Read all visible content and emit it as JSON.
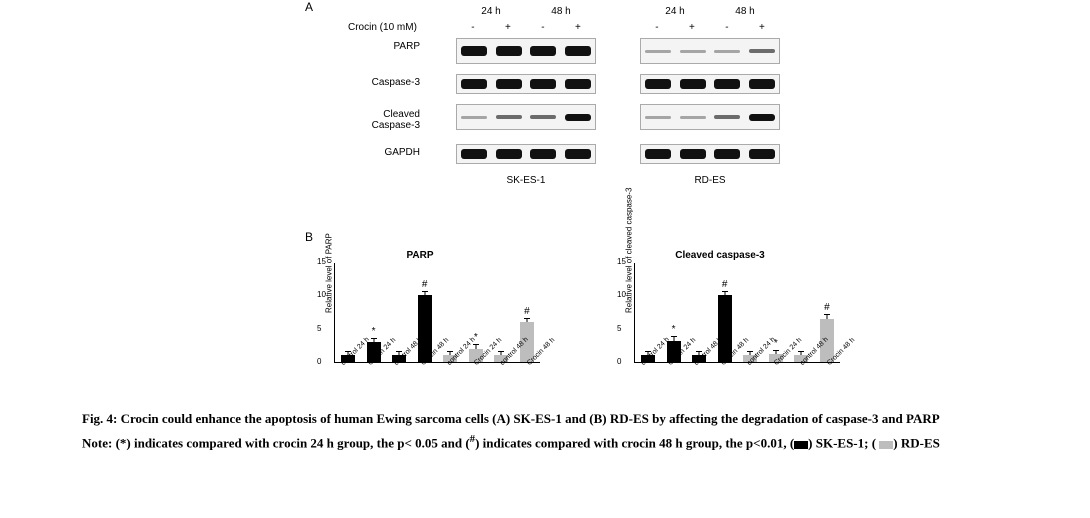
{
  "panel_a_label": "A",
  "panel_b_label": "B",
  "time_headers": [
    "24 h",
    "48 h"
  ],
  "treatment_label": "Crocin (10 mM)",
  "treatment_signs": [
    "-",
    "+",
    "-",
    "+"
  ],
  "row_labels": {
    "parp": "PARP",
    "casp3": "Caspase-3",
    "ccasp3_line1": "Cleaved",
    "ccasp3_line2": "Caspase-3",
    "gapdh": "GAPDH"
  },
  "cell_lines": {
    "left": "SK-ES-1",
    "right": "RD-ES"
  },
  "bands": {
    "sk": {
      "parp": [
        "b-strong",
        "b-strong",
        "b-strong",
        "b-strong"
      ],
      "casp3": [
        "b-strong",
        "b-strong",
        "b-strong",
        "b-strong"
      ],
      "ccasp3": [
        "b-vweak",
        "b-weak",
        "b-weak",
        "b-med"
      ],
      "gapdh": [
        "b-strong",
        "b-strong",
        "b-strong",
        "b-strong"
      ]
    },
    "rd": {
      "parp": [
        "b-vweak",
        "b-vweak",
        "b-vweak",
        "b-weak"
      ],
      "casp3": [
        "b-strong",
        "b-strong",
        "b-strong",
        "b-strong"
      ],
      "ccasp3": [
        "b-vweak",
        "b-vweak",
        "b-weak",
        "b-med"
      ],
      "gapdh": [
        "b-strong",
        "b-strong",
        "b-strong",
        "b-strong"
      ]
    }
  },
  "charts": [
    {
      "title": "PARP",
      "ylabel": "Relative level of PARP",
      "ymax": 15,
      "yticks": [
        0,
        5,
        10,
        15
      ],
      "bars": [
        {
          "label": "control 24 h",
          "value": 1.0,
          "colorClass": "black",
          "sig": ""
        },
        {
          "label": "Crocin 24 h",
          "value": 3.0,
          "colorClass": "black",
          "sig": "*"
        },
        {
          "label": "control 48 h",
          "value": 1.0,
          "colorClass": "black",
          "sig": ""
        },
        {
          "label": "Crocin 48 h",
          "value": 10.0,
          "colorClass": "black",
          "sig": "#"
        },
        {
          "label": "control 24 h",
          "value": 1.0,
          "colorClass": "grey",
          "sig": ""
        },
        {
          "label": "Crocin 24 h",
          "value": 2.0,
          "colorClass": "grey",
          "sig": "*"
        },
        {
          "label": "control 48 h",
          "value": 1.0,
          "colorClass": "grey",
          "sig": ""
        },
        {
          "label": "Crocin 48 h",
          "value": 6.0,
          "colorClass": "grey",
          "sig": "#"
        }
      ],
      "err": 0.5
    },
    {
      "title": "Cleaved caspase-3",
      "ylabel": "Relative level of cleaved caspase-3",
      "ymax": 15,
      "yticks": [
        0,
        5,
        10,
        15
      ],
      "bars": [
        {
          "label": "control 24 h",
          "value": 1.0,
          "colorClass": "black",
          "sig": ""
        },
        {
          "label": "Crocin 24 h",
          "value": 3.2,
          "colorClass": "black",
          "sig": "*"
        },
        {
          "label": "control 48 h",
          "value": 1.0,
          "colorClass": "black",
          "sig": ""
        },
        {
          "label": "Crocin 48 h",
          "value": 10.0,
          "colorClass": "black",
          "sig": "#"
        },
        {
          "label": "control 24 h",
          "value": 1.0,
          "colorClass": "grey",
          "sig": ""
        },
        {
          "label": "Crocin 24 h",
          "value": 1.2,
          "colorClass": "grey",
          "sig": "*"
        },
        {
          "label": "control 48 h",
          "value": 1.0,
          "colorClass": "grey",
          "sig": ""
        },
        {
          "label": "Crocin 48 h",
          "value": 6.5,
          "colorClass": "grey",
          "sig": "#"
        }
      ],
      "err": 0.5
    }
  ],
  "caption": {
    "title": "Fig. 4: Crocin could enhance the apoptosis of human Ewing sarcoma cells (A) SK-ES-1 and (B) RD-ES by affecting the degradation of caspase-3 and PARP",
    "note_prefix": "Note: (*) indicates compared with crocin 24 h group, the p< 0.05 and (",
    "note_hash": "#",
    "note_mid": ") indicates compared with crocin 48 h group, the p<0.01, (",
    "note_sw1": "■",
    "note_sk": ") SK-ES-1; ( ",
    "note_sw2": "■",
    "note_rd": ") RD-ES"
  },
  "colors": {
    "sk_bar": "#000000",
    "rd_bar": "#bdbdbd"
  }
}
